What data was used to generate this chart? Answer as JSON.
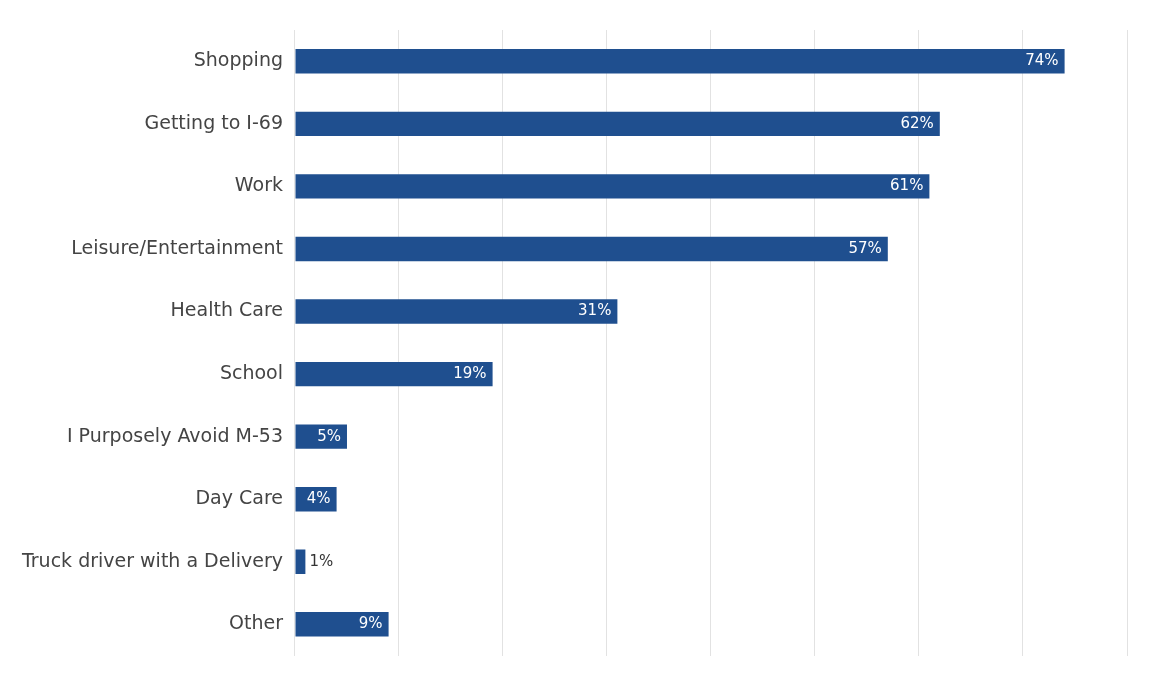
{
  "chart_data": {
    "type": "bar",
    "orientation": "horizontal",
    "categories": [
      "Shopping",
      "Getting to I-69",
      "Work",
      "Leisure/Entertainment",
      "Health Care",
      "School",
      "I Purposely Avoid M-53",
      "Day Care",
      "Truck driver with a Delivery",
      "Other"
    ],
    "values": [
      74,
      62,
      61,
      57,
      31,
      19,
      5,
      4,
      1,
      9
    ],
    "value_labels": [
      "74%",
      "62%",
      "61%",
      "57%",
      "31%",
      "19%",
      "5%",
      "4%",
      "1%",
      "9%"
    ],
    "color": "#1f4f8f",
    "xlim": [
      0,
      80
    ],
    "xticks": [
      {
        "value": 0,
        "label": null
      },
      {
        "value": 10,
        "label": null
      },
      {
        "value": 20,
        "label": null
      },
      {
        "value": 30,
        "label": null
      },
      {
        "value": 40,
        "label": null
      },
      {
        "value": 50,
        "label": null
      },
      {
        "value": 60,
        "label": null
      },
      {
        "value": 70,
        "label": null
      },
      {
        "value": 80,
        "label": null
      }
    ],
    "grid": "x",
    "tick_labels": "y",
    "legend": false
  }
}
